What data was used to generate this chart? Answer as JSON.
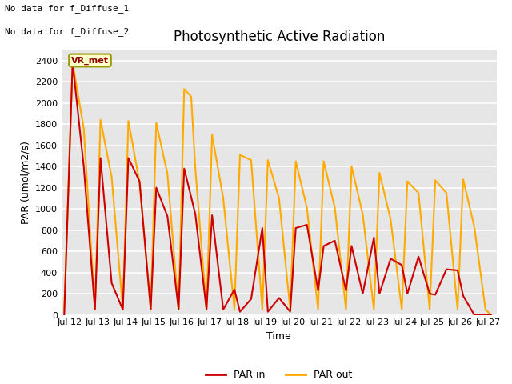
{
  "title": "Photosynthetic Active Radiation",
  "xlabel": "Time",
  "ylabel": "PAR (umol/m2/s)",
  "top_text_1": "No data for f_Diffuse_1",
  "top_text_2": "No data for f_Diffuse_2",
  "box_label": "VR_met",
  "legend_labels": [
    "PAR in",
    "PAR out"
  ],
  "par_in_color": "#cc0000",
  "par_out_color": "#ffaa00",
  "background_color": "#e6e6e6",
  "ylim": [
    0,
    2500
  ],
  "xlim_start": 11.7,
  "xlim_end": 27.3,
  "xtick_positions": [
    12,
    13,
    14,
    15,
    16,
    17,
    18,
    19,
    20,
    21,
    22,
    23,
    24,
    25,
    26,
    27
  ],
  "xtick_labels": [
    "Jul 12",
    "Jul 13",
    "Jul 14",
    "Jul 15",
    "Jul 16",
    "Jul 17",
    "Jul 18",
    "Jul 19",
    "Jul 20",
    "Jul 21",
    "Jul 22",
    "Jul 23",
    "Jul 24",
    "Jul 25",
    "Jul 26",
    "Jul 27"
  ],
  "par_out_x": [
    11.8,
    12.1,
    12.5,
    12.9,
    13.1,
    13.5,
    13.9,
    14.1,
    14.5,
    14.9,
    15.1,
    15.5,
    15.9,
    16.1,
    16.35,
    16.5,
    16.9,
    17.1,
    17.5,
    17.9,
    18.1,
    18.5,
    18.9,
    19.1,
    19.5,
    19.9,
    20.1,
    20.5,
    20.9,
    21.1,
    21.5,
    21.9,
    22.1,
    22.5,
    22.9,
    23.1,
    23.5,
    23.9,
    24.1,
    24.5,
    24.9,
    25.1,
    25.5,
    25.9,
    26.1,
    26.5,
    26.9,
    27.1
  ],
  "par_out_y": [
    50,
    2380,
    1760,
    50,
    1840,
    1300,
    50,
    1830,
    1250,
    50,
    1810,
    1330,
    50,
    2130,
    2060,
    1380,
    50,
    1700,
    1100,
    50,
    1510,
    1460,
    50,
    1460,
    1100,
    50,
    1450,
    1010,
    50,
    1450,
    1010,
    50,
    1400,
    950,
    50,
    1340,
    900,
    50,
    1260,
    1150,
    50,
    1270,
    1150,
    50,
    1280,
    830,
    50,
    0
  ],
  "par_in_x": [
    11.8,
    12.1,
    12.5,
    12.9,
    13.1,
    13.5,
    13.9,
    14.1,
    14.5,
    14.9,
    15.1,
    15.5,
    15.9,
    16.1,
    16.5,
    16.9,
    17.1,
    17.5,
    17.9,
    18.1,
    18.5,
    18.9,
    19.1,
    19.5,
    19.9,
    20.1,
    20.5,
    20.9,
    21.1,
    21.5,
    21.9,
    22.1,
    22.5,
    22.9,
    23.1,
    23.5,
    23.9,
    24.1,
    24.5,
    24.9,
    25.1,
    25.5,
    25.9,
    26.1,
    26.5,
    26.9,
    27.1
  ],
  "par_in_y": [
    0,
    2380,
    1400,
    50,
    1480,
    300,
    50,
    1480,
    1260,
    50,
    1200,
    930,
    50,
    1380,
    950,
    50,
    940,
    50,
    240,
    30,
    150,
    820,
    30,
    160,
    30,
    820,
    850,
    230,
    650,
    700,
    230,
    650,
    200,
    730,
    200,
    530,
    470,
    200,
    550,
    200,
    190,
    430,
    420,
    180,
    0,
    0,
    0
  ]
}
